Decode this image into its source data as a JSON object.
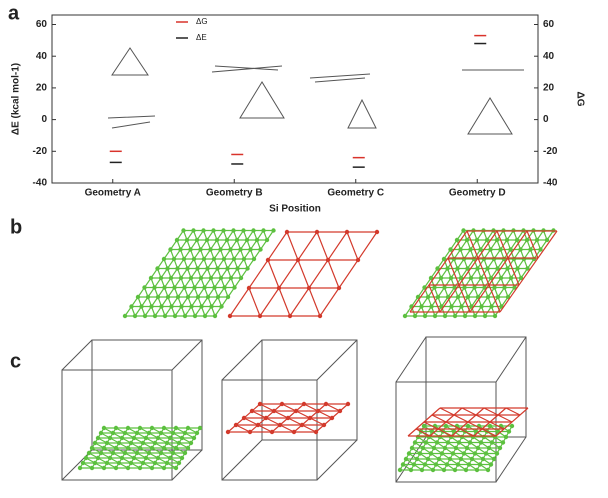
{
  "chart_data": {
    "type": "dash",
    "panel_labels": [
      "a",
      "b",
      "c"
    ],
    "x_label": "Si Position",
    "y_label": "ΔE (kcal mol-1)",
    "y2_label": "ΔG",
    "categories": [
      "Geometry A",
      "Geometry B",
      "Geometry C",
      "Geometry D"
    ],
    "series": [
      {
        "name": "ΔG",
        "color": "#d9332b",
        "axis": "y2",
        "values": [
          -20,
          -22,
          -24,
          53
        ]
      },
      {
        "name": "ΔE",
        "color": "#222222",
        "values": [
          -27,
          -28,
          -30,
          48
        ]
      }
    ],
    "ylim": [
      -40,
      66
    ],
    "yticks": [
      -40,
      -20,
      0,
      20,
      40,
      60
    ],
    "y2lim": [
      -40,
      66
    ],
    "y2ticks": [
      -40,
      -20,
      0,
      20,
      40,
      60
    ],
    "legend": "top-left"
  }
}
